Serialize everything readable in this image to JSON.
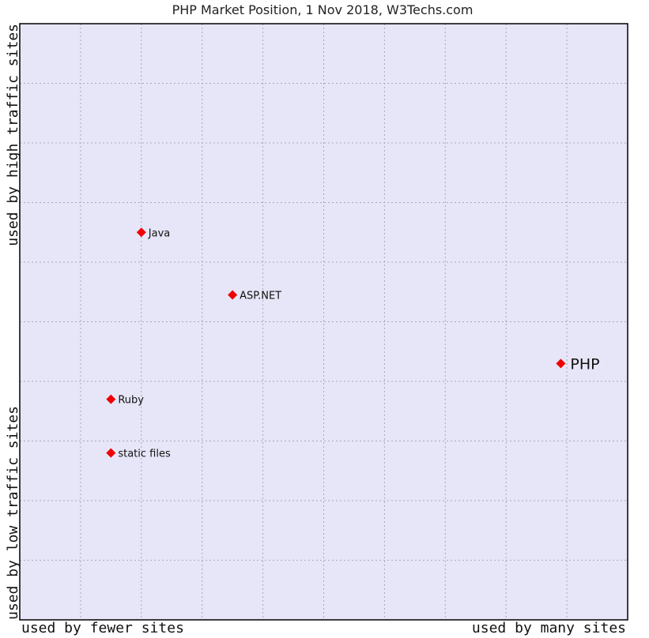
{
  "chart_data": {
    "type": "scatter",
    "title": "PHP Market Position, 1 Nov 2018, W3Techs.com",
    "x_axis": {
      "left_label": "used by fewer sites",
      "right_label": "used by many sites",
      "range": [
        0,
        10
      ],
      "ticks": 10
    },
    "y_axis": {
      "top_label": "used by high traffic sites",
      "bottom_label": "used by low traffic sites",
      "range": [
        0,
        10
      ],
      "ticks": 10
    },
    "grid": true,
    "points": [
      {
        "label": "Java",
        "x": 2.0,
        "y": 6.5,
        "emphasis": false
      },
      {
        "label": "ASP.NET",
        "x": 3.5,
        "y": 5.45,
        "emphasis": false
      },
      {
        "label": "PHP",
        "x": 8.9,
        "y": 4.3,
        "emphasis": true
      },
      {
        "label": "Ruby",
        "x": 1.5,
        "y": 3.7,
        "emphasis": false
      },
      {
        "label": "static files",
        "x": 1.5,
        "y": 2.8,
        "emphasis": false
      }
    ],
    "colors": {
      "plot_background": "#e6e6f8",
      "grid": "#a8a8b8",
      "border": "#000000",
      "point": "#ee0000"
    }
  }
}
